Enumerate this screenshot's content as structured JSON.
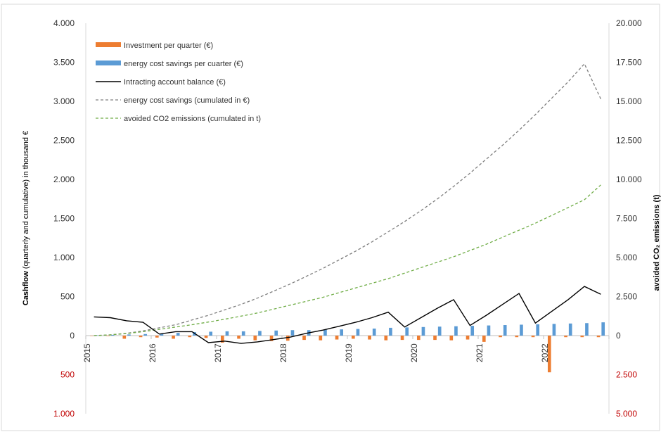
{
  "chart_data": {
    "type": "bar",
    "title": "",
    "ylabel_left_bold": "Cashflow",
    "ylabel_left_rest": " (quarterly and cumulative) in thousand €",
    "ylabel_right": "avoided CO₂ emissions (t)",
    "y_left": {
      "range": [
        -1000,
        4000
      ],
      "ticks": [
        4000,
        3500,
        3000,
        2500,
        2000,
        1500,
        1000,
        500,
        0,
        -500,
        -1000
      ],
      "tick_labels": [
        "4.000",
        "3.500",
        "3.000",
        "2.500",
        "2.000",
        "1.500",
        "1.000",
        "500",
        "0",
        "500",
        "1.000"
      ]
    },
    "y_right": {
      "range": [
        -5000,
        20000
      ],
      "ticks": [
        20000,
        17500,
        15000,
        12500,
        10000,
        7500,
        5000,
        2500,
        0,
        -2500,
        -5000
      ],
      "tick_labels": [
        "20.000",
        "17.500",
        "15.000",
        "12.500",
        "10.000",
        "7.500",
        "5.000",
        "2.500",
        "0",
        "2.500",
        "5.000"
      ]
    },
    "x_labels": [
      "2015",
      "2016",
      "2017",
      "2018",
      "2019",
      "2020",
      "2021",
      "2022"
    ],
    "quarters": 32,
    "legend": [
      {
        "key": "investment",
        "label": "Investment per quarter (€)",
        "kind": "bar",
        "color": "#ed7d31"
      },
      {
        "key": "savings",
        "label": "energy cost savings per cuarter (€)",
        "kind": "bar",
        "color": "#5b9bd5"
      },
      {
        "key": "balance",
        "label": "Intracting account balance (€)",
        "kind": "line",
        "color": "#000000"
      },
      {
        "key": "cum_savings",
        "label": "energy cost savings (cumulated in €)",
        "kind": "dash",
        "color": "#7f7f7f"
      },
      {
        "key": "co2",
        "label": "avoided CO2 emissions (cumulated in t)",
        "kind": "dash",
        "color": "#70ad47"
      }
    ],
    "series": {
      "investment": [
        0,
        -5,
        -40,
        -20,
        -25,
        -40,
        -20,
        -30,
        -90,
        -40,
        -60,
        -70,
        -65,
        -55,
        -60,
        -50,
        -40,
        -50,
        -60,
        -55,
        -55,
        -55,
        -60,
        -50,
        -80,
        -20,
        -20,
        -20,
        -470,
        -20,
        -20,
        -20
      ],
      "savings": [
        5,
        10,
        15,
        20,
        25,
        35,
        45,
        50,
        55,
        55,
        60,
        65,
        70,
        70,
        75,
        80,
        85,
        90,
        100,
        105,
        110,
        115,
        120,
        125,
        130,
        135,
        140,
        145,
        150,
        155,
        160,
        170
      ],
      "balance": [
        240,
        230,
        190,
        170,
        20,
        50,
        50,
        -90,
        -70,
        -100,
        -80,
        -50,
        -20,
        30,
        70,
        120,
        170,
        230,
        300,
        110,
        230,
        350,
        460,
        130,
        260,
        400,
        540,
        160,
        310,
        460,
        630,
        530
      ],
      "cum_savings": [
        0,
        10,
        30,
        60,
        100,
        140,
        200,
        260,
        330,
        400,
        480,
        570,
        660,
        760,
        860,
        970,
        1080,
        1200,
        1330,
        1460,
        1600,
        1750,
        1910,
        2080,
        2260,
        2440,
        2630,
        2830,
        3040,
        3250,
        3480,
        3030
      ],
      "co2": [
        0,
        50,
        130,
        250,
        400,
        550,
        700,
        870,
        1050,
        1250,
        1450,
        1700,
        1950,
        2200,
        2450,
        2750,
        3050,
        3350,
        3650,
        4000,
        4350,
        4700,
        5050,
        5450,
        5850,
        6300,
        6750,
        7200,
        7700,
        8200,
        8700,
        9650
      ]
    },
    "grid": false,
    "legend_position": "top-left"
  }
}
